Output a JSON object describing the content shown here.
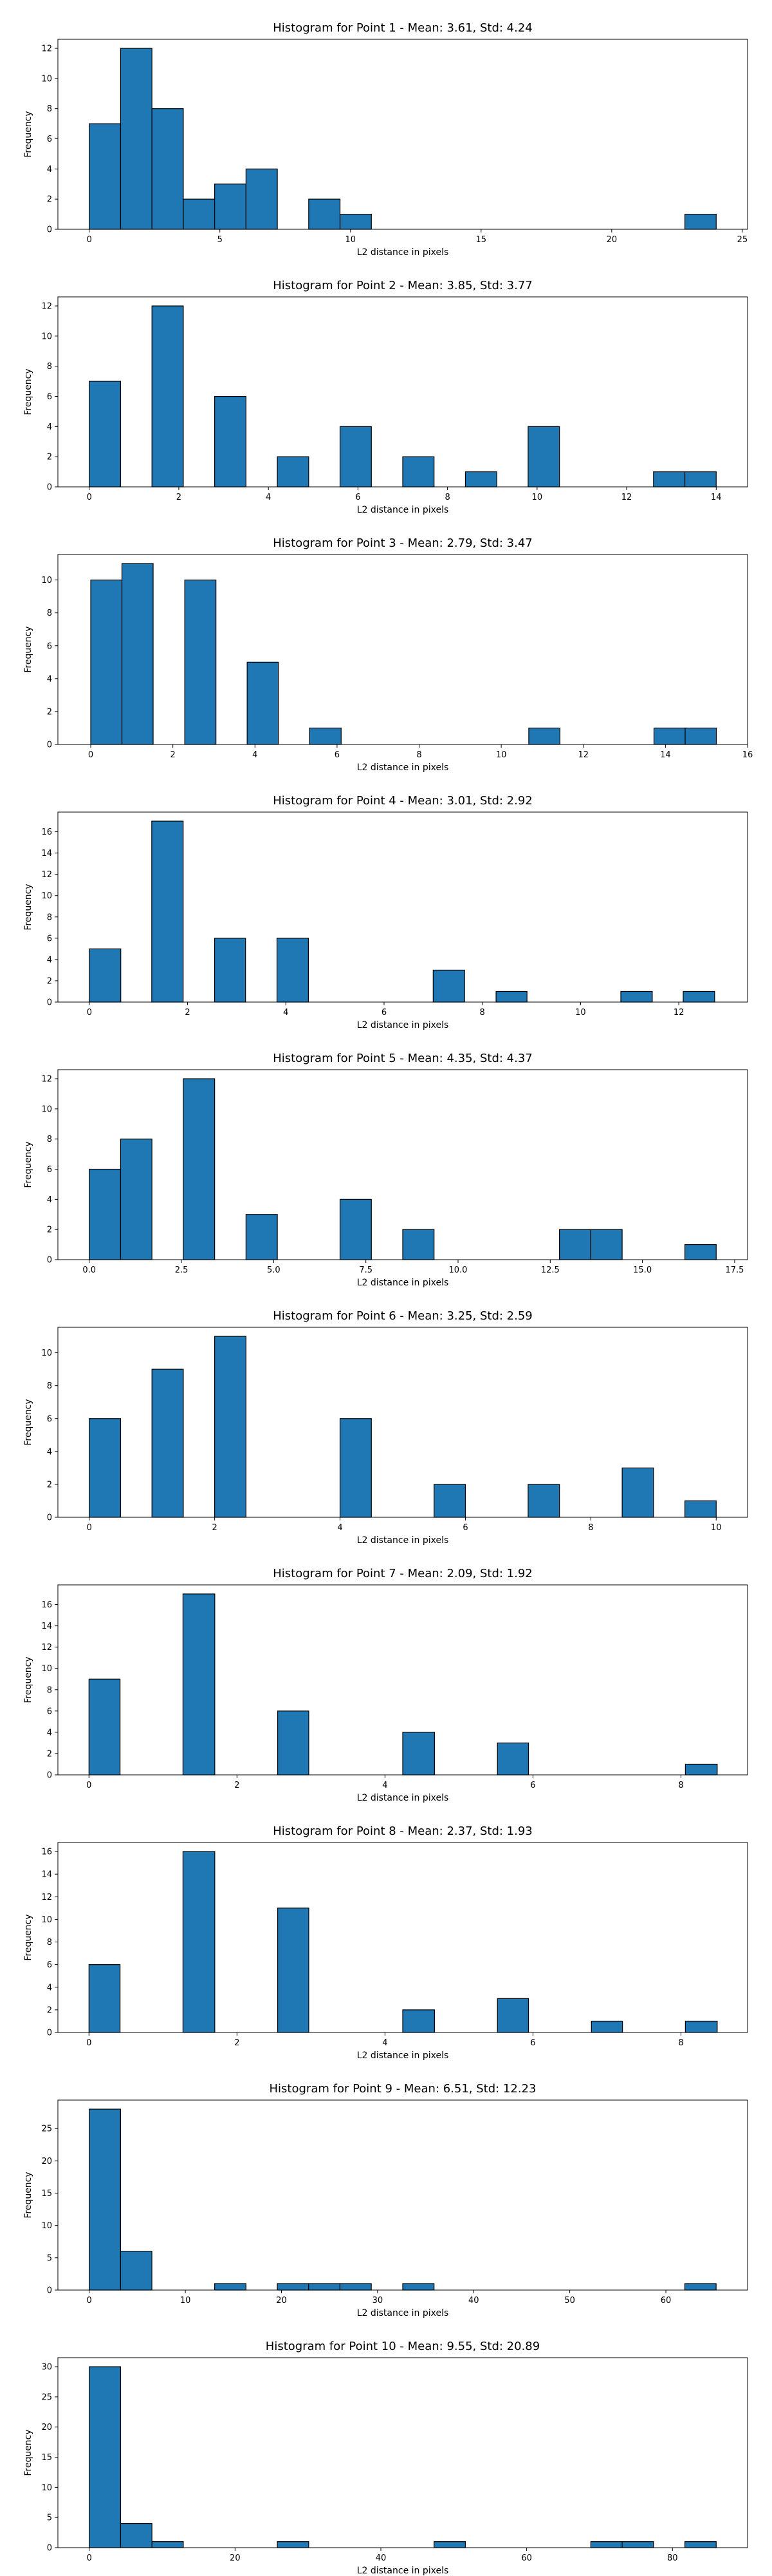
{
  "figure": {
    "background": "#ffffff"
  },
  "style": {
    "bar_fill": "#1f77b4",
    "bar_edge": "#000000",
    "axis_color": "#000000"
  },
  "chart_data": [
    {
      "type": "bar",
      "title": "Histogram for Point 1 - Mean: 3.61, Std: 4.24",
      "xlabel": "L2 distance in pixels",
      "ylabel": "Frequency",
      "grid": false,
      "xlim": [
        -1.2,
        25.2
      ],
      "ylim": [
        0,
        12.6
      ],
      "xticks": [
        0,
        5,
        10,
        15,
        20,
        25
      ],
      "yticks": [
        0,
        2,
        4,
        6,
        8,
        10,
        12
      ],
      "bins": [
        [
          0.0,
          1.2,
          7
        ],
        [
          1.2,
          2.4,
          12
        ],
        [
          2.4,
          3.6,
          8
        ],
        [
          3.6,
          4.8,
          2
        ],
        [
          4.8,
          6.0,
          3
        ],
        [
          6.0,
          7.2,
          4
        ],
        [
          8.4,
          9.6,
          2
        ],
        [
          9.6,
          10.8,
          1
        ],
        [
          22.8,
          24.0,
          1
        ]
      ]
    },
    {
      "type": "bar",
      "title": "Histogram for Point 2 - Mean: 3.85, Std: 3.77",
      "xlabel": "L2 distance in pixels",
      "ylabel": "Frequency",
      "grid": false,
      "xlim": [
        -0.7,
        14.7
      ],
      "ylim": [
        0,
        12.6
      ],
      "xticks": [
        0,
        2,
        4,
        6,
        8,
        10,
        12,
        14
      ],
      "yticks": [
        0,
        2,
        4,
        6,
        8,
        10,
        12
      ],
      "bins": [
        [
          0.0,
          0.7,
          7
        ],
        [
          1.4,
          2.1,
          12
        ],
        [
          2.8,
          3.5,
          6
        ],
        [
          4.2,
          4.9,
          2
        ],
        [
          5.6,
          6.3,
          4
        ],
        [
          7.0,
          7.7,
          2
        ],
        [
          8.4,
          9.1,
          1
        ],
        [
          9.8,
          10.5,
          4
        ],
        [
          12.6,
          13.3,
          1
        ],
        [
          13.3,
          14.0,
          1
        ]
      ]
    },
    {
      "type": "bar",
      "title": "Histogram for Point 3 - Mean: 2.79, Std: 3.47",
      "xlabel": "L2 distance in pixels",
      "ylabel": "Frequency",
      "grid": false,
      "xlim": [
        -0.8,
        16.0
      ],
      "ylim": [
        0,
        11.55
      ],
      "xticks": [
        0,
        2,
        4,
        6,
        8,
        10,
        12,
        14,
        16
      ],
      "yticks": [
        0,
        2,
        4,
        6,
        8,
        10
      ],
      "bins": [
        [
          0.0,
          0.76,
          10
        ],
        [
          0.76,
          1.52,
          11
        ],
        [
          2.29,
          3.05,
          10
        ],
        [
          3.81,
          4.57,
          5
        ],
        [
          5.33,
          6.1,
          1
        ],
        [
          10.67,
          11.43,
          1
        ],
        [
          13.72,
          14.48,
          1
        ],
        [
          14.48,
          15.24,
          1
        ]
      ]
    },
    {
      "type": "bar",
      "title": "Histogram for Point 4 - Mean: 3.01, Std: 2.92",
      "xlabel": "L2 distance in pixels",
      "ylabel": "Frequency",
      "grid": false,
      "xlim": [
        -0.64,
        13.4
      ],
      "ylim": [
        0,
        17.85
      ],
      "xticks": [
        0,
        2,
        4,
        6,
        8,
        10,
        12
      ],
      "yticks": [
        0,
        2,
        4,
        6,
        8,
        10,
        12,
        14,
        16
      ],
      "bins": [
        [
          0.0,
          0.64,
          5
        ],
        [
          1.27,
          1.91,
          17
        ],
        [
          2.55,
          3.18,
          6
        ],
        [
          3.82,
          4.46,
          6
        ],
        [
          7.0,
          7.64,
          3
        ],
        [
          8.28,
          8.91,
          1
        ],
        [
          10.82,
          11.46,
          1
        ],
        [
          12.09,
          12.73,
          1
        ]
      ]
    },
    {
      "type": "bar",
      "title": "Histogram for Point 5 - Mean: 4.35, Std: 4.37",
      "xlabel": "L2 distance in pixels",
      "ylabel": "Frequency",
      "grid": false,
      "xlim": [
        -0.85,
        17.85
      ],
      "ylim": [
        0,
        12.6
      ],
      "xticks": [
        0.0,
        2.5,
        5.0,
        7.5,
        10.0,
        12.5,
        15.0,
        17.5
      ],
      "xtick_labels": [
        "0.0",
        "2.5",
        "5.0",
        "7.5",
        "10.0",
        "12.5",
        "15.0",
        "17.5"
      ],
      "yticks": [
        0,
        2,
        4,
        6,
        8,
        10,
        12
      ],
      "bins": [
        [
          0.0,
          0.85,
          6
        ],
        [
          0.85,
          1.7,
          8
        ],
        [
          2.55,
          3.4,
          12
        ],
        [
          4.25,
          5.1,
          3
        ],
        [
          6.8,
          7.65,
          4
        ],
        [
          8.5,
          9.35,
          2
        ],
        [
          12.75,
          13.6,
          2
        ],
        [
          13.6,
          14.45,
          2
        ],
        [
          16.15,
          17.0,
          1
        ]
      ]
    },
    {
      "type": "bar",
      "title": "Histogram for Point 6 - Mean: 3.25, Std: 2.59",
      "xlabel": "L2 distance in pixels",
      "ylabel": "Frequency",
      "grid": false,
      "xlim": [
        -0.5,
        10.5
      ],
      "ylim": [
        0,
        11.55
      ],
      "xticks": [
        0,
        2,
        4,
        6,
        8,
        10
      ],
      "yticks": [
        0,
        2,
        4,
        6,
        8,
        10
      ],
      "bins": [
        [
          0.0,
          0.5,
          6
        ],
        [
          1.0,
          1.5,
          9
        ],
        [
          2.0,
          2.5,
          11
        ],
        [
          4.0,
          4.5,
          6
        ],
        [
          5.5,
          6.0,
          2
        ],
        [
          7.0,
          7.5,
          2
        ],
        [
          8.5,
          9.0,
          3
        ],
        [
          9.5,
          10.0,
          1
        ]
      ]
    },
    {
      "type": "bar",
      "title": "Histogram for Point 7 - Mean: 2.09, Std: 1.92",
      "xlabel": "L2 distance in pixels",
      "ylabel": "Frequency",
      "grid": false,
      "xlim": [
        -0.42,
        8.9
      ],
      "ylim": [
        0,
        17.85
      ],
      "xticks": [
        0,
        2,
        4,
        6,
        8
      ],
      "yticks": [
        0,
        2,
        4,
        6,
        8,
        10,
        12,
        14,
        16
      ],
      "bins": [
        [
          0.0,
          0.42,
          9
        ],
        [
          1.27,
          1.7,
          17
        ],
        [
          2.55,
          2.97,
          6
        ],
        [
          4.24,
          4.67,
          4
        ],
        [
          5.52,
          5.94,
          3
        ],
        [
          8.06,
          8.49,
          1
        ]
      ]
    },
    {
      "type": "bar",
      "title": "Histogram for Point 8 - Mean: 2.37, Std: 1.93",
      "xlabel": "L2 distance in pixels",
      "ylabel": "Frequency",
      "grid": false,
      "xlim": [
        -0.42,
        8.9
      ],
      "ylim": [
        0,
        16.8
      ],
      "xticks": [
        0,
        2,
        4,
        6,
        8
      ],
      "yticks": [
        0,
        2,
        4,
        6,
        8,
        10,
        12,
        14,
        16
      ],
      "bins": [
        [
          0.0,
          0.42,
          6
        ],
        [
          1.27,
          1.7,
          16
        ],
        [
          2.55,
          2.97,
          11
        ],
        [
          4.24,
          4.67,
          2
        ],
        [
          5.52,
          5.94,
          3
        ],
        [
          6.79,
          7.21,
          1
        ],
        [
          8.06,
          8.49,
          1
        ]
      ]
    },
    {
      "type": "bar",
      "title": "Histogram for Point 9 - Mean: 6.51, Std: 12.23",
      "xlabel": "L2 distance in pixels",
      "ylabel": "Frequency",
      "grid": false,
      "xlim": [
        -3.26,
        68.5
      ],
      "ylim": [
        0,
        29.4
      ],
      "xticks": [
        0,
        10,
        20,
        30,
        40,
        50,
        60
      ],
      "yticks": [
        0,
        5,
        10,
        15,
        20,
        25
      ],
      "bins": [
        [
          0.0,
          3.26,
          28
        ],
        [
          3.26,
          6.52,
          6
        ],
        [
          13.05,
          16.31,
          1
        ],
        [
          19.57,
          22.83,
          1
        ],
        [
          22.83,
          26.09,
          1
        ],
        [
          26.09,
          29.35,
          1
        ],
        [
          32.62,
          35.88,
          1
        ],
        [
          61.97,
          65.23,
          1
        ]
      ]
    },
    {
      "type": "bar",
      "title": "Histogram for Point 10 - Mean: 9.55, Std: 20.89",
      "xlabel": "L2 distance in pixels",
      "ylabel": "Frequency",
      "grid": false,
      "xlim": [
        -4.3,
        90.3
      ],
      "ylim": [
        0,
        31.5
      ],
      "xticks": [
        0,
        20,
        40,
        60,
        80
      ],
      "yticks": [
        0,
        5,
        10,
        15,
        20,
        25,
        30
      ],
      "bins": [
        [
          0.0,
          4.3,
          30
        ],
        [
          4.3,
          8.6,
          4
        ],
        [
          8.6,
          12.9,
          1
        ],
        [
          25.8,
          30.1,
          1
        ],
        [
          47.3,
          51.6,
          1
        ],
        [
          68.8,
          73.1,
          1
        ],
        [
          73.1,
          77.4,
          1
        ],
        [
          81.7,
          86.0,
          1
        ]
      ]
    }
  ]
}
